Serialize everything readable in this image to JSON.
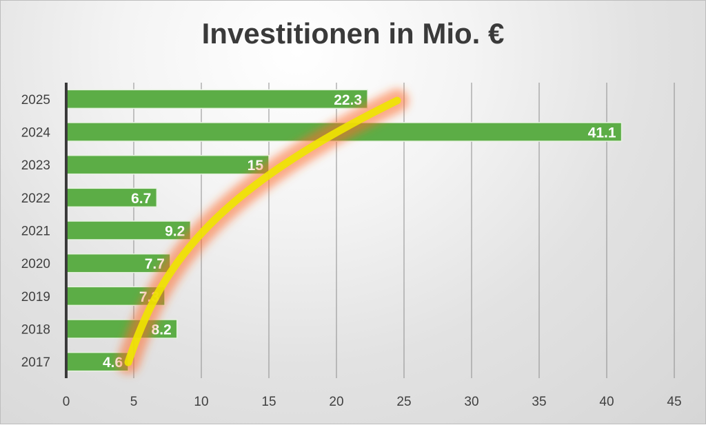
{
  "chart_data": {
    "type": "bar",
    "orientation": "horizontal",
    "title": "Investitionen in Mio. €",
    "categories": [
      "2017",
      "2018",
      "2019",
      "2020",
      "2021",
      "2022",
      "2023",
      "2024",
      "2025"
    ],
    "values": [
      4.6,
      8.2,
      7.3,
      7.7,
      9.2,
      6.7,
      15,
      41.1,
      22.3
    ],
    "data_labels": [
      "4.6",
      "8.2",
      "7.3",
      "7.7",
      "9.2",
      "6.7",
      "15",
      "41.1",
      "22.3"
    ],
    "xlim": [
      0,
      45
    ],
    "xticks": [
      0,
      5,
      10,
      15,
      20,
      25,
      30,
      35,
      40,
      45
    ],
    "grid": "vertical",
    "bar_color": "#5cad46",
    "annotation": {
      "type": "curved-arrow-highlight",
      "color": "#f2e200",
      "glow_color": "#ff7a3c"
    }
  }
}
